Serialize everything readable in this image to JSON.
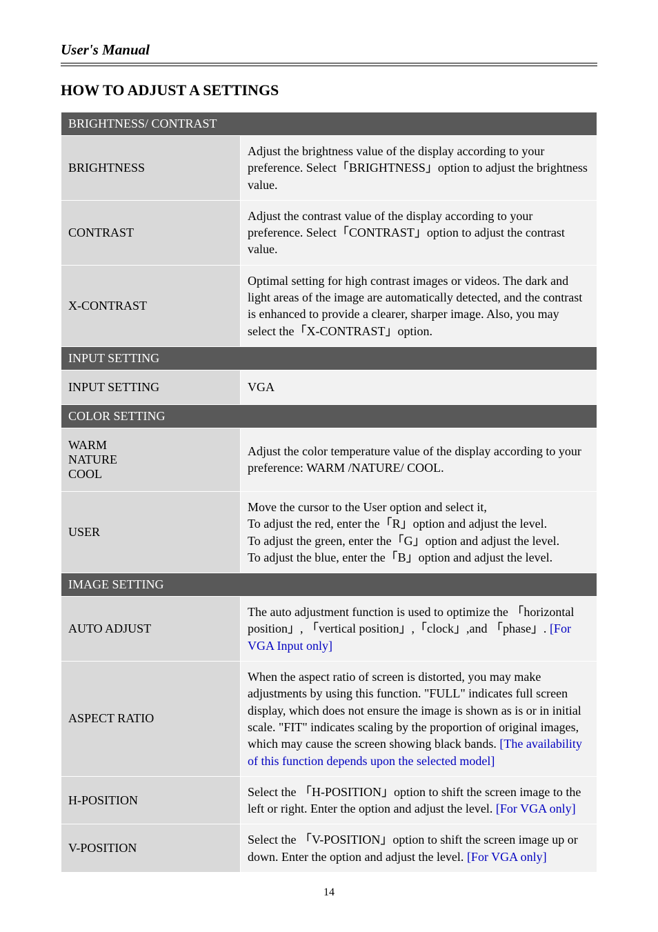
{
  "header": {
    "title": "User's Manual"
  },
  "section": {
    "title": "HOW TO ADJUST A SETTINGS"
  },
  "groups": {
    "brightness_contrast": {
      "header": "BRIGHTNESS/ CONTRAST",
      "brightness": {
        "label": "BRIGHTNESS",
        "desc": "Adjust the brightness value of the display according to your preference. Select「BRIGHTNESS」option to adjust the brightness value."
      },
      "contrast": {
        "label": "CONTRAST",
        "desc": "Adjust the contrast value of the display according to your preference. Select「CONTRAST」option to adjust the contrast value."
      },
      "xcontrast": {
        "label": "X-CONTRAST",
        "desc": "Optimal setting for high contrast images or videos. The dark and light areas of the image are automatically detected, and the contrast is enhanced to provide a clearer, sharper image. Also, you may select the「X-CONTRAST」option."
      }
    },
    "input_setting": {
      "header": "INPUT SETTING",
      "row": {
        "label": "INPUT SETTING",
        "desc": "VGA"
      }
    },
    "color_setting": {
      "header": "COLOR SETTING",
      "warm": {
        "label": "WARM\nNATURE\nCOOL",
        "desc": "Adjust the color temperature value of the display according to your preference: WARM /NATURE/ COOL."
      },
      "user": {
        "label": "USER",
        "desc": "Move the cursor to the User option and select it,\nTo adjust the red, enter the「R」option and adjust the level.\nTo adjust the green, enter the「G」option and adjust the level.\nTo adjust the blue, enter the「B」option and adjust the level."
      }
    },
    "image_setting": {
      "header": "IMAGE SETTING",
      "auto_adjust": {
        "label": "AUTO ADJUST",
        "desc_pre": "The auto adjustment function is used to optimize the 「horizontal position」, 「vertical position」,「clock」,and 「phase」. ",
        "desc_blue": "[For VGA Input only]"
      },
      "aspect_ratio": {
        "label": "ASPECT RATIO",
        "desc_pre": "When the aspect ratio of screen is distorted, you may make adjustments by using this function. \"FULL\" indicates full screen display, which does not ensure the image is shown as is or in initial scale. \"FIT\" indicates scaling by the proportion of original images, which may cause the screen showing black bands. ",
        "desc_blue": "[The availability of this function depends upon the selected model]"
      },
      "h_position": {
        "label": "H-POSITION",
        "desc_pre": "Select the 「H-POSITION」option to shift the screen image to the left or right. Enter the option and adjust the level. ",
        "desc_blue": "[For VGA only]"
      },
      "v_position": {
        "label": "V-POSITION",
        "desc_pre": "Select the 「V-POSITION」option to shift the screen image up or down. Enter the option and adjust the level. ",
        "desc_blue": "[For VGA only]"
      }
    }
  },
  "page_number": "14",
  "colors": {
    "group_header_bg": "#595959",
    "group_header_fg": "#ffffff",
    "label_bg": "#d9d9d9",
    "desc_bg": "#f2f2f2",
    "text": "#000000",
    "link_blue": "#0000c0",
    "border": "#ffffff"
  },
  "typography": {
    "body_font": "Times New Roman",
    "header_title_pt": 16,
    "section_title_pt": 17,
    "cell_pt": 14
  }
}
